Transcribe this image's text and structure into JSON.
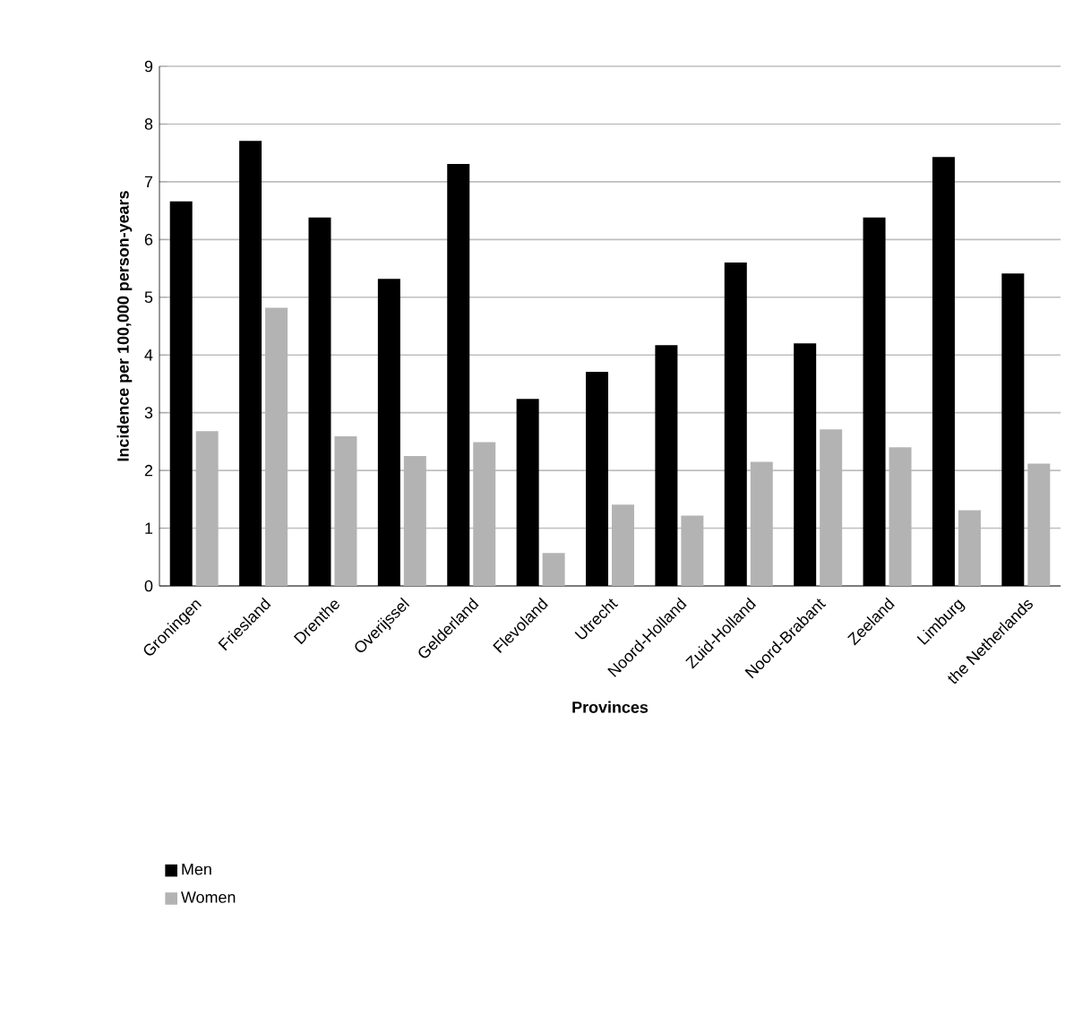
{
  "chart_data": {
    "type": "bar",
    "xlabel": "Provinces",
    "ylabel": "Incidence per 100,000 person-years",
    "categories": [
      "Groningen",
      "Friesland",
      "Drenthe",
      "Overijssel",
      "Gelderland",
      "Flevoland",
      "Utrecht",
      "Noord-Holland",
      "Zuid-Holland",
      "Noord-Brabant",
      "Zeeland",
      "Limburg",
      "the Netherlands"
    ],
    "series": [
      {
        "name": "Men",
        "color": "#000000",
        "values": [
          6.66,
          7.71,
          6.38,
          5.32,
          7.31,
          3.24,
          3.71,
          4.17,
          5.6,
          4.2,
          6.38,
          7.43,
          5.41
        ]
      },
      {
        "name": "Women",
        "color": "#b3b3b3",
        "values": [
          2.68,
          4.82,
          2.59,
          2.25,
          2.49,
          0.57,
          1.41,
          1.22,
          2.15,
          2.71,
          2.4,
          1.31,
          2.12
        ]
      }
    ],
    "ylim": [
      0,
      9
    ],
    "yticks": [
      0,
      1,
      2,
      3,
      4,
      5,
      6,
      7,
      8,
      9
    ],
    "grid": "y",
    "legend": "bottom left"
  }
}
